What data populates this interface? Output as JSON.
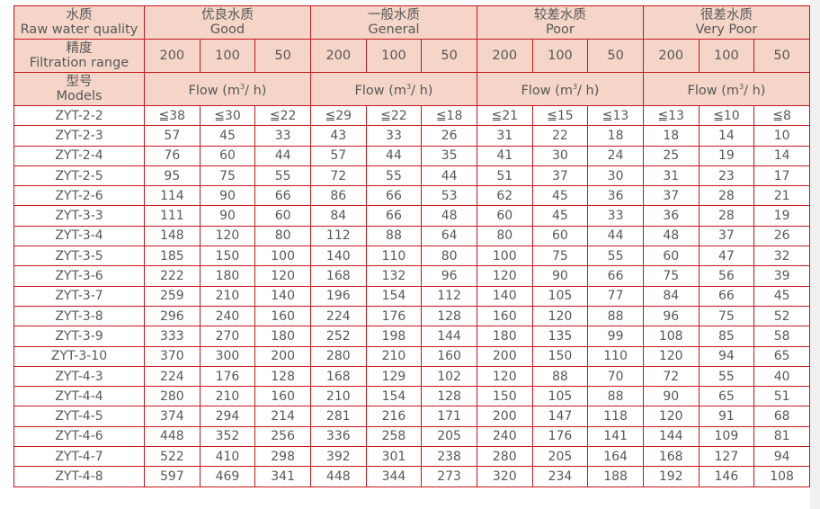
{
  "header": {
    "quality_label_cn": "水质",
    "quality_label_en": "Raw water quality",
    "range_label_cn": "精度",
    "range_label_en": "Filtration range",
    "models_label_cn": "型号",
    "models_label_en": "Models",
    "groups": [
      {
        "cn": "优良水质",
        "en": "Good"
      },
      {
        "cn": "一般水质",
        "en": "General"
      },
      {
        "cn": "较差水质",
        "en": "Poor"
      },
      {
        "cn": "很差水质",
        "en": "Very Poor"
      }
    ],
    "ranges": [
      "200",
      "100",
      "50"
    ],
    "flow_unit_pre": "Flow (m",
    "flow_unit_sup": "3",
    "flow_unit_post": "/ h)"
  },
  "rows": [
    {
      "model": "ZYT-2-2",
      "values": [
        "≦38",
        "≦30",
        "≦22",
        "≦29",
        "≦22",
        "≦18",
        "≦21",
        "≦15",
        "≦13",
        "≦13",
        "≦10",
        "≦8"
      ]
    },
    {
      "model": "ZYT-2-3",
      "values": [
        "57",
        "45",
        "33",
        "43",
        "33",
        "26",
        "31",
        "22",
        "18",
        "18",
        "14",
        "10"
      ]
    },
    {
      "model": "ZYT-2-4",
      "values": [
        "76",
        "60",
        "44",
        "57",
        "44",
        "35",
        "41",
        "30",
        "24",
        "25",
        "19",
        "14"
      ]
    },
    {
      "model": "ZYT-2-5",
      "values": [
        "95",
        "75",
        "55",
        "72",
        "55",
        "44",
        "51",
        "37",
        "30",
        "31",
        "23",
        "17"
      ]
    },
    {
      "model": "ZYT-2-6",
      "values": [
        "114",
        "90",
        "66",
        "86",
        "66",
        "53",
        "62",
        "45",
        "36",
        "37",
        "28",
        "21"
      ]
    },
    {
      "model": "ZYT-3-3",
      "values": [
        "111",
        "90",
        "60",
        "84",
        "66",
        "48",
        "60",
        "45",
        "33",
        "36",
        "28",
        "19"
      ]
    },
    {
      "model": "ZYT-3-4",
      "values": [
        "148",
        "120",
        "80",
        "112",
        "88",
        "64",
        "80",
        "60",
        "44",
        "48",
        "37",
        "26"
      ]
    },
    {
      "model": "ZYT-3-5",
      "values": [
        "185",
        "150",
        "100",
        "140",
        "110",
        "80",
        "100",
        "75",
        "55",
        "60",
        "47",
        "32"
      ]
    },
    {
      "model": "ZYT-3-6",
      "values": [
        "222",
        "180",
        "120",
        "168",
        "132",
        "96",
        "120",
        "90",
        "66",
        "75",
        "56",
        "39"
      ]
    },
    {
      "model": "ZYT-3-7",
      "values": [
        "259",
        "210",
        "140",
        "196",
        "154",
        "112",
        "140",
        "105",
        "77",
        "84",
        "66",
        "45"
      ]
    },
    {
      "model": "ZYT-3-8",
      "values": [
        "296",
        "240",
        "160",
        "224",
        "176",
        "128",
        "160",
        "120",
        "88",
        "96",
        "75",
        "52"
      ]
    },
    {
      "model": "ZYT-3-9",
      "values": [
        "333",
        "270",
        "180",
        "252",
        "198",
        "144",
        "180",
        "135",
        "99",
        "108",
        "85",
        "58"
      ]
    },
    {
      "model": "ZYT-3-10",
      "values": [
        "370",
        "300",
        "200",
        "280",
        "210",
        "160",
        "200",
        "150",
        "110",
        "120",
        "94",
        "65"
      ]
    },
    {
      "model": "ZYT-4-3",
      "values": [
        "224",
        "176",
        "128",
        "168",
        "129",
        "102",
        "120",
        "88",
        "70",
        "72",
        "55",
        "40"
      ]
    },
    {
      "model": "ZYT-4-4",
      "values": [
        "280",
        "210",
        "160",
        "210",
        "154",
        "128",
        "150",
        "105",
        "88",
        "90",
        "65",
        "51"
      ]
    },
    {
      "model": "ZYT-4-5",
      "values": [
        "374",
        "294",
        "214",
        "281",
        "216",
        "171",
        "200",
        "147",
        "118",
        "120",
        "91",
        "68"
      ]
    },
    {
      "model": "ZYT-4-6",
      "values": [
        "448",
        "352",
        "256",
        "336",
        "258",
        "205",
        "240",
        "176",
        "141",
        "144",
        "109",
        "81"
      ]
    },
    {
      "model": "ZYT-4-7",
      "values": [
        "522",
        "410",
        "298",
        "392",
        "301",
        "238",
        "280",
        "205",
        "164",
        "168",
        "127",
        "94"
      ]
    },
    {
      "model": "ZYT-4-8",
      "values": [
        "597",
        "469",
        "341",
        "448",
        "344",
        "273",
        "320",
        "234",
        "188",
        "192",
        "146",
        "108"
      ]
    }
  ],
  "colors": {
    "border": "#c8161e",
    "header_bg": "#f4d5c8",
    "text": "#585858"
  }
}
